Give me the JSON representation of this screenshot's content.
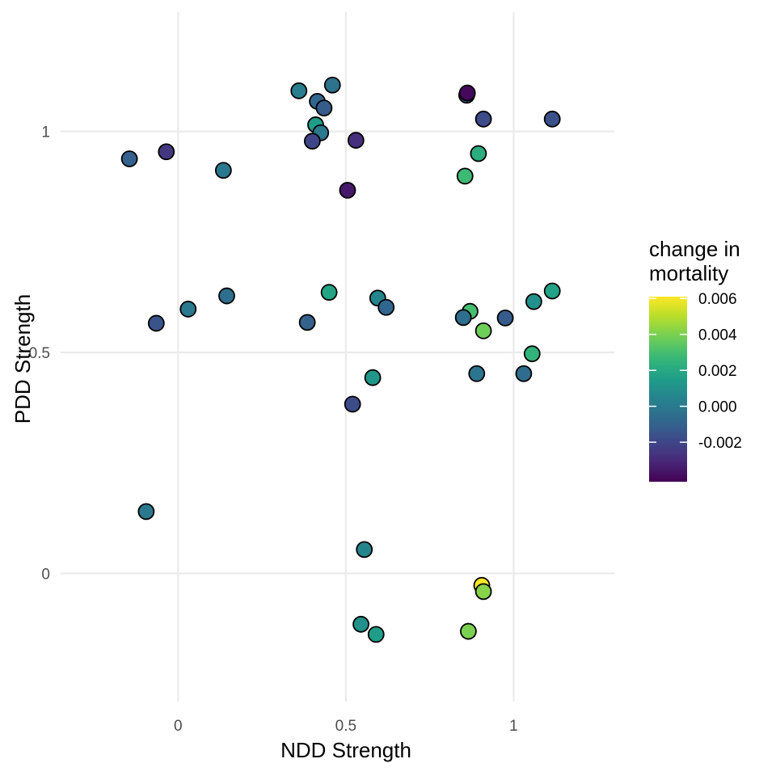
{
  "chart_data": {
    "type": "scatter",
    "xlabel": "NDD Strength",
    "ylabel": "PDD Strength",
    "xlim": [
      -0.35,
      1.3
    ],
    "ylim": [
      -0.29,
      1.27
    ],
    "x_ticks": [
      0,
      0.5,
      1
    ],
    "x_tick_labels": [
      "0",
      "0.5",
      "1"
    ],
    "y_ticks": [
      0,
      0.5,
      1
    ],
    "y_tick_labels": [
      "0",
      "0.5",
      "1"
    ],
    "grid": true,
    "color_scale": {
      "title_lines": [
        "change in",
        "mortality"
      ],
      "palette": "viridis",
      "min": -0.0042,
      "max": 0.0061,
      "ticks": [
        0.006,
        0.004,
        0.002,
        0.0,
        -0.002
      ],
      "tick_labels": [
        "0.006",
        "0.004",
        "0.002",
        "0.000",
        "-0.002"
      ],
      "legend_position": "right"
    },
    "points": [
      {
        "x": -0.145,
        "y": 0.938,
        "c": -0.001
      },
      {
        "x": -0.035,
        "y": 0.954,
        "c": -0.0025
      },
      {
        "x": 0.135,
        "y": 0.912,
        "c": 0.0
      },
      {
        "x": 0.36,
        "y": 1.092,
        "c": 0.0002
      },
      {
        "x": 0.46,
        "y": 1.105,
        "c": -0.0003
      },
      {
        "x": 0.415,
        "y": 1.068,
        "c": -0.0008
      },
      {
        "x": 0.435,
        "y": 1.053,
        "c": -0.0012
      },
      {
        "x": 0.41,
        "y": 1.015,
        "c": 0.0015
      },
      {
        "x": 0.425,
        "y": 0.997,
        "c": 0.0
      },
      {
        "x": 0.4,
        "y": 0.978,
        "c": -0.002
      },
      {
        "x": 0.53,
        "y": 0.98,
        "c": -0.0028
      },
      {
        "x": 0.505,
        "y": 0.867,
        "c": -0.0035
      },
      {
        "x": 0.86,
        "y": 1.082,
        "c": -0.0012
      },
      {
        "x": 0.862,
        "y": 1.087,
        "c": -0.004
      },
      {
        "x": 0.91,
        "y": 1.028,
        "c": -0.0018
      },
      {
        "x": 1.115,
        "y": 1.028,
        "c": -0.0016
      },
      {
        "x": 0.895,
        "y": 0.95,
        "c": 0.0022
      },
      {
        "x": 0.855,
        "y": 0.899,
        "c": 0.0028
      },
      {
        "x": -0.065,
        "y": 0.566,
        "c": -0.0015
      },
      {
        "x": 0.03,
        "y": 0.598,
        "c": 0.0
      },
      {
        "x": 0.145,
        "y": 0.628,
        "c": -0.0005
      },
      {
        "x": 0.385,
        "y": 0.568,
        "c": -0.001
      },
      {
        "x": 0.45,
        "y": 0.636,
        "c": 0.0018
      },
      {
        "x": 0.595,
        "y": 0.623,
        "c": 0.0005
      },
      {
        "x": 0.62,
        "y": 0.602,
        "c": -0.0008
      },
      {
        "x": 0.58,
        "y": 0.443,
        "c": 0.0012
      },
      {
        "x": 0.52,
        "y": 0.383,
        "c": -0.0018
      },
      {
        "x": 0.87,
        "y": 0.593,
        "c": 0.003
      },
      {
        "x": 0.85,
        "y": 0.579,
        "c": -0.0005
      },
      {
        "x": 0.91,
        "y": 0.549,
        "c": 0.0038
      },
      {
        "x": 0.975,
        "y": 0.578,
        "c": -0.0012
      },
      {
        "x": 1.06,
        "y": 0.615,
        "c": 0.001
      },
      {
        "x": 1.115,
        "y": 0.639,
        "c": 0.0017
      },
      {
        "x": 1.055,
        "y": 0.497,
        "c": 0.0025
      },
      {
        "x": 0.89,
        "y": 0.452,
        "c": -0.0002
      },
      {
        "x": 1.03,
        "y": 0.452,
        "c": -0.0006
      },
      {
        "x": -0.095,
        "y": 0.14,
        "c": 0.0
      },
      {
        "x": 0.555,
        "y": 0.054,
        "c": 0.0005
      },
      {
        "x": 0.545,
        "y": -0.115,
        "c": 0.001
      },
      {
        "x": 0.59,
        "y": -0.138,
        "c": 0.0015
      },
      {
        "x": 0.905,
        "y": -0.027,
        "c": 0.0061
      },
      {
        "x": 0.91,
        "y": -0.041,
        "c": 0.0042
      },
      {
        "x": 0.865,
        "y": -0.131,
        "c": 0.004
      }
    ]
  }
}
